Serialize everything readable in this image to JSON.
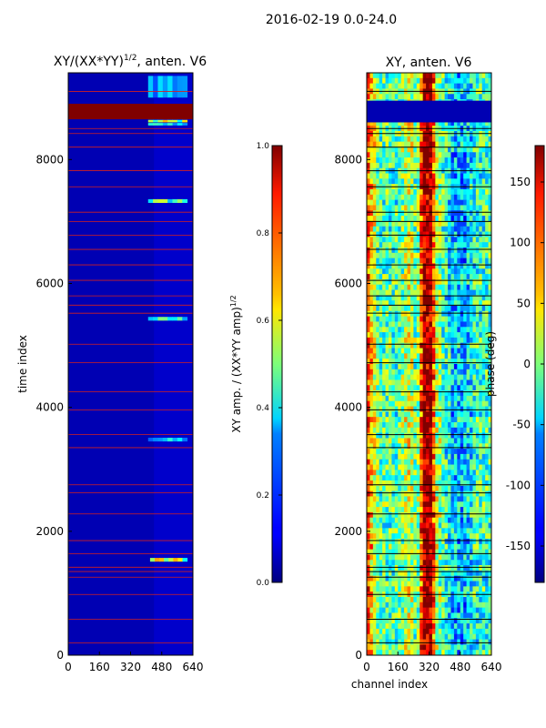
{
  "figure": {
    "suptitle": "2016-02-19 0.0-24.0",
    "xlabel": "channel index"
  },
  "chart_data": [
    {
      "type": "heatmap",
      "title": "XY/(XX*YY)^{1/2}, anten. V6",
      "title_main": "XY/(XX*YY)",
      "title_sup": "1/2",
      "title_tail": ", anten. V6",
      "xlim": [
        0,
        640
      ],
      "ylim": [
        0,
        9400
      ],
      "xticks": [
        0,
        160,
        320,
        480,
        640
      ],
      "yticks": [
        0,
        2000,
        4000,
        6000,
        8000
      ],
      "ylabel": "time index",
      "colormap": "jet",
      "background_value": 0.05,
      "noisy_region": {
        "x": [
          440,
          640
        ],
        "value": 0.12
      },
      "full_saturation_bands": [
        [
          8650,
          8900
        ]
      ],
      "bright_bands": [
        {
          "y": [
            8600,
            8640
          ],
          "x": [
            410,
            610
          ],
          "value": 0.5
        },
        {
          "y": [
            8550,
            8590
          ],
          "x": [
            410,
            610
          ],
          "value": 0.35
        },
        {
          "y": [
            7300,
            7360
          ],
          "x": [
            410,
            610
          ],
          "value": 0.45
        },
        {
          "y": [
            5400,
            5460
          ],
          "x": [
            410,
            610
          ],
          "value": 0.38
        },
        {
          "y": [
            3450,
            3510
          ],
          "x": [
            410,
            610
          ],
          "value": 0.3
        },
        {
          "y": [
            1510,
            1570
          ],
          "x": [
            420,
            610
          ],
          "value": 0.55
        },
        {
          "y": [
            9000,
            9350
          ],
          "x": [
            410,
            610
          ],
          "value": 0.3
        }
      ],
      "flag_lines": [
        200,
        580,
        980,
        1260,
        1350,
        1420,
        1640,
        1850,
        2280,
        2620,
        2750,
        3350,
        3560,
        3960,
        4250,
        4720,
        5020,
        5520,
        5650,
        5800,
        6050,
        6300,
        6550,
        6780,
        7000,
        7150,
        7560,
        7820,
        8200,
        8420,
        8500,
        9100
      ],
      "colorbar": {
        "range": [
          0.0,
          1.0
        ],
        "ticks": [
          "0.0",
          "0.2",
          "0.4",
          "0.6",
          "0.8",
          "1.0"
        ],
        "label": "XY amp. / (XX*YY amp)^{1/2}",
        "label_main": "XY amp. / (XX*YY amp)",
        "label_sup": "1/2"
      }
    },
    {
      "type": "heatmap",
      "title": "XY, anten. V6",
      "xlim": [
        0,
        640
      ],
      "ylim": [
        0,
        9400
      ],
      "xticks": [
        0,
        160,
        320,
        480,
        640
      ],
      "yticks": [
        0,
        2000,
        4000,
        6000,
        8000
      ],
      "colormap": "jet",
      "phase_profile": {
        "x": [
          0,
          60,
          160,
          220,
          260,
          290,
          330,
          360,
          400,
          440,
          500,
          560,
          640
        ],
        "phase_deg": [
          120,
          -10,
          -20,
          40,
          -20,
          170,
          175,
          20,
          -20,
          -60,
          -70,
          -30,
          -20
        ]
      },
      "blue_bands": [
        [
          8600,
          8950
        ]
      ],
      "flag_lines": [
        200,
        580,
        980,
        1260,
        1350,
        1420,
        1640,
        1850,
        2280,
        2620,
        2750,
        3350,
        3560,
        3960,
        4250,
        4720,
        5020,
        5520,
        5650,
        5800,
        6050,
        6300,
        6550,
        6780,
        7000,
        7150,
        7560,
        7820,
        8200,
        8420,
        8500,
        9100
      ],
      "colorbar": {
        "range": [
          -180,
          180
        ],
        "ticks": [
          "-150",
          "-100",
          "-50",
          "0",
          "50",
          "100",
          "150"
        ],
        "tick_values": [
          -150,
          -100,
          -50,
          0,
          50,
          100,
          150
        ],
        "label": "phase (deg)"
      }
    }
  ]
}
